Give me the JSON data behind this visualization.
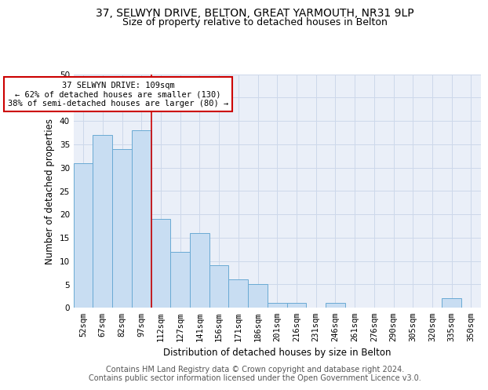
{
  "title": "37, SELWYN DRIVE, BELTON, GREAT YARMOUTH, NR31 9LP",
  "subtitle": "Size of property relative to detached houses in Belton",
  "xlabel": "Distribution of detached houses by size in Belton",
  "ylabel": "Number of detached properties",
  "categories": [
    "52sqm",
    "67sqm",
    "82sqm",
    "97sqm",
    "112sqm",
    "127sqm",
    "141sqm",
    "156sqm",
    "171sqm",
    "186sqm",
    "201sqm",
    "216sqm",
    "231sqm",
    "246sqm",
    "261sqm",
    "276sqm",
    "290sqm",
    "305sqm",
    "320sqm",
    "335sqm",
    "350sqm"
  ],
  "values": [
    31,
    37,
    34,
    38,
    19,
    12,
    16,
    9,
    6,
    5,
    1,
    1,
    0,
    1,
    0,
    0,
    0,
    0,
    0,
    2,
    0
  ],
  "bar_color": "#c8ddf2",
  "bar_edge_color": "#6aaad4",
  "property_line_color": "#cc0000",
  "annotation_text": "37 SELWYN DRIVE: 109sqm\n← 62% of detached houses are smaller (130)\n38% of semi-detached houses are larger (80) →",
  "annotation_box_color": "#ffffff",
  "annotation_box_edge_color": "#cc0000",
  "ylim": [
    0,
    50
  ],
  "yticks": [
    0,
    5,
    10,
    15,
    20,
    25,
    30,
    35,
    40,
    45,
    50
  ],
  "grid_color": "#cdd8ea",
  "background_color": "#eaeff8",
  "footer_text": "Contains HM Land Registry data © Crown copyright and database right 2024.\nContains public sector information licensed under the Open Government Licence v3.0.",
  "title_fontsize": 10,
  "subtitle_fontsize": 9,
  "xlabel_fontsize": 8.5,
  "ylabel_fontsize": 8.5,
  "tick_fontsize": 7.5,
  "annotation_fontsize": 7.5,
  "footer_fontsize": 7
}
